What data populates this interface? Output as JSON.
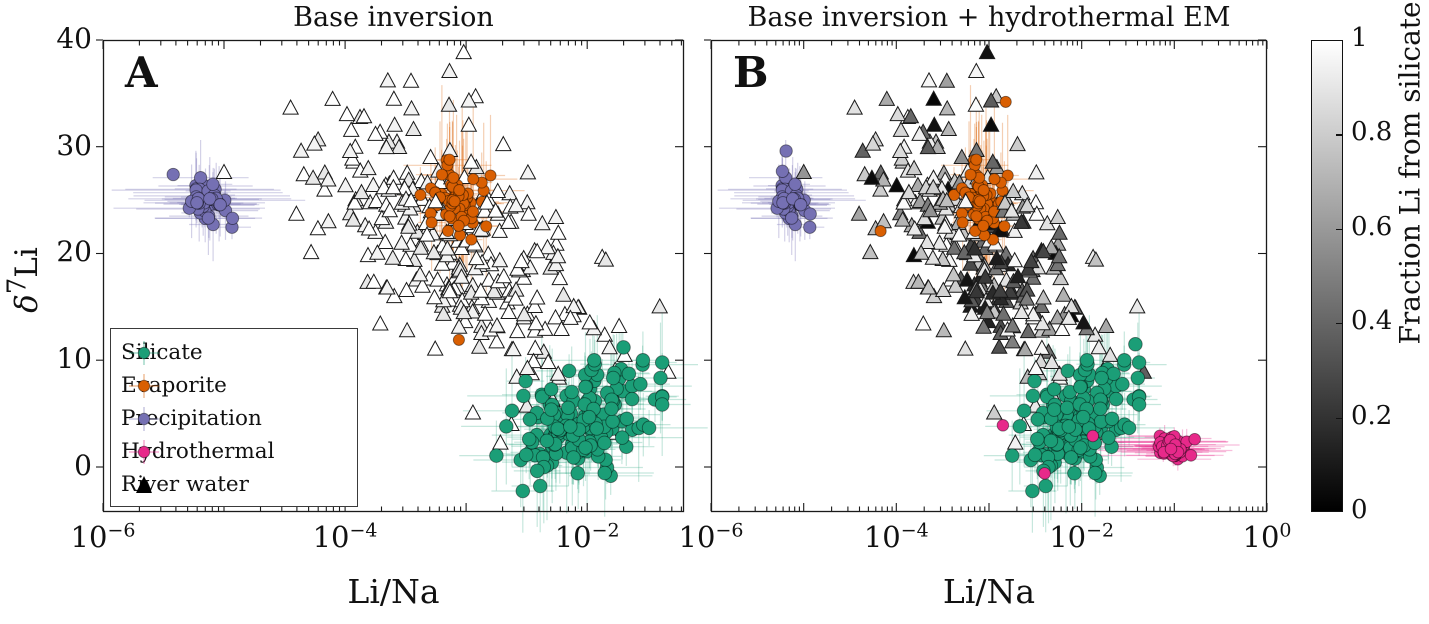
{
  "figure": {
    "background": "#ffffff"
  },
  "chart_data": [
    {
      "id": "A",
      "type": "scatter",
      "title": "Base inversion",
      "panel_label": "A",
      "xlabel": "Li/Na",
      "ylabel_parts": {
        "base": "δ",
        "sup": "7",
        "rest": "Li"
      },
      "x_scale": "log10",
      "xlim_log10": [
        -6,
        -1.2
      ],
      "ylim": [
        -4.22,
        40
      ],
      "grid": false,
      "xticks": [
        {
          "base": "10",
          "sup": "−6",
          "log10": -6
        },
        {
          "base": "10",
          "sup": "−4",
          "log10": -4
        },
        {
          "base": "10",
          "sup": "−2",
          "log10": -2
        }
      ],
      "yticks": [
        0,
        10,
        20,
        30,
        40
      ],
      "series_order": [
        "precipitation",
        "precipitation_extras_A",
        "river_water",
        "evaporite",
        "silicate",
        "evaporite_extras_A",
        "silicate_extras_A"
      ],
      "river_fill_mode": "open"
    },
    {
      "id": "B",
      "type": "scatter",
      "title": "Base inversion + hydrothermal EM",
      "panel_label": "B",
      "xlabel": "Li/Na",
      "ylabel_parts": {
        "base": "δ",
        "sup": "7",
        "rest": "Li"
      },
      "x_scale": "log10",
      "xlim_log10": [
        -6,
        0
      ],
      "ylim": [
        -4.22,
        40
      ],
      "grid": false,
      "xticks": [
        {
          "base": "10",
          "sup": "−6",
          "log10": -6
        },
        {
          "base": "10",
          "sup": "−4",
          "log10": -4
        },
        {
          "base": "10",
          "sup": "−2",
          "log10": -2
        },
        {
          "base": "10",
          "sup": "0",
          "log10": 0
        }
      ],
      "yticks": [
        0,
        10,
        20,
        30,
        40
      ],
      "series_order": [
        "precipitation",
        "precipitation_extras_B",
        "river_water",
        "evaporite",
        "silicate",
        "hydrothermal",
        "evaporite_extras_B",
        "silicate_extras_B",
        "hydrothermal_extras_B"
      ],
      "river_fill_mode": "fraction"
    }
  ],
  "series_defs": {
    "river_water": {
      "label": "River water",
      "marker": "triangle",
      "seed": 7,
      "n": 300,
      "logx_mean": -3.0,
      "logx_sd": 0.62,
      "logx_clip": [
        -5.0,
        -1.33
      ],
      "y_ref_x": -3.3,
      "y_base": 22,
      "y_slope": -6.5,
      "flat_below": -3.8,
      "y_sd": 5.0,
      "y_clip": [
        -1.5,
        39.3
      ],
      "extra_points": [
        [
          -3.02,
          38.8
        ],
        [
          -4.45,
          33.6
        ]
      ],
      "edge_color": "#1a1a1a",
      "open_fill_palette": [
        "#ffffff",
        "#f3f3f3",
        "#e8e8e8"
      ],
      "open_fill_weights": [
        0.55,
        0.3,
        0.15
      ]
    },
    "silicate": {
      "label": "Silicate",
      "marker": "circle",
      "seed": 11,
      "n": 165,
      "color": "#1b9e77",
      "r": 6.8,
      "center": [
        -2.05,
        4.0
      ],
      "sd": [
        0.3,
        2.3
      ],
      "tilt": 2.5,
      "logx_clip": [
        -2.75,
        -1.38
      ],
      "y_clip": [
        -2.6,
        10.0
      ],
      "err": {
        "opacity": 0.25,
        "h_min": 0.12,
        "h_rng": 0.38,
        "v_min": 1.5,
        "v_rng": 4.5,
        "left_bias": 0
      }
    },
    "evaporite": {
      "label": "Evaporite",
      "marker": "circle",
      "seed": 13,
      "n": 62,
      "color": "#d95f02",
      "r": 5.6,
      "center": [
        -3.08,
        25.0
      ],
      "sd": [
        0.12,
        1.7
      ],
      "tilt": 0,
      "logx_clip": [
        -3.45,
        -2.78
      ],
      "y_clip": [
        20.5,
        29.6
      ],
      "err": {
        "opacity": 0.3,
        "h_min": 0.08,
        "h_rng": 0.3,
        "v_min": 2.0,
        "v_rng": 7.0,
        "left_bias": 0
      }
    },
    "precipitation": {
      "label": "Precipitation",
      "marker": "circle",
      "seed": 17,
      "n": 46,
      "color": "#7570b3",
      "r": 6.2,
      "center": [
        -5.15,
        25.0
      ],
      "sd": [
        0.09,
        1.1
      ],
      "tilt": 0,
      "logx_clip": [
        -5.5,
        -4.8
      ],
      "y_clip": [
        21.5,
        28.5
      ],
      "err": {
        "opacity": 0.32,
        "h_min": 0.15,
        "h_rng": 0.55,
        "v_min": 0.8,
        "v_rng": 3.2,
        "left_bias": 0
      }
    },
    "hydrothermal": {
      "label": "Hydrothermal",
      "marker": "circle",
      "seed": 19,
      "n": 55,
      "color": "#e7298a",
      "r": 5.8,
      "center": [
        -1.03,
        1.7
      ],
      "sd": [
        0.075,
        0.45
      ],
      "tilt": 0,
      "logx_clip": [
        -1.25,
        -0.82
      ],
      "y_clip": [
        0.3,
        3.2
      ],
      "err": {
        "opacity": 0.3,
        "h_min": 0.08,
        "h_rng": 0.55,
        "v_min": 0.3,
        "v_rng": 1.1,
        "left_bias": 0.35
      }
    },
    "precipitation_extras_A": {
      "marker": "circle",
      "color": "#7570b3",
      "r": 6.2,
      "points": [
        [
          -5.42,
          27.4
        ],
        [
          -4.93,
          23.3
        ]
      ]
    },
    "evaporite_extras_A": {
      "marker": "circle",
      "color": "#d95f02",
      "r": 5.6,
      "points": [
        [
          -3.06,
          11.9
        ]
      ]
    },
    "silicate_extras_A": {
      "marker": "circle",
      "color": "#1b9e77",
      "r": 6.8,
      "points": [
        [
          -1.7,
          11.2
        ]
      ]
    },
    "precipitation_extras_B": {
      "marker": "circle",
      "color": "#7570b3",
      "r": 6.2,
      "points": [
        [
          -5.19,
          29.6
        ],
        [
          -5.23,
          27.7
        ],
        [
          -4.93,
          23.7
        ]
      ]
    },
    "evaporite_extras_B": {
      "marker": "circle",
      "color": "#d95f02",
      "r": 5.6,
      "points": [
        [
          -2.82,
          34.2
        ],
        [
          -4.17,
          22.1
        ]
      ]
    },
    "silicate_extras_B": {
      "marker": "circle",
      "color": "#1b9e77",
      "r": 6.8,
      "points": [
        [
          -1.42,
          11.5
        ]
      ]
    },
    "hydrothermal_extras_B": {
      "marker": "circle",
      "color": "#e7298a",
      "r": 5.8,
      "points": [
        [
          -2.85,
          3.9
        ],
        [
          -1.88,
          2.9
        ],
        [
          -2.4,
          -0.6
        ],
        [
          -0.78,
          2.6
        ]
      ]
    }
  },
  "fraction_model": {
    "seed": 23,
    "pocket_center": [
      -2.85,
      17.5
    ],
    "pocket_radii": [
      0.5,
      6.5
    ],
    "pocket_prob": 0.7,
    "pocket_f": [
      0.05,
      0.5
    ],
    "black_prob": 0.06,
    "black_f": [
      0.0,
      0.12
    ],
    "mid_prob": 0.2,
    "mid_f": [
      0.35,
      0.68
    ],
    "light_f": [
      0.6,
      1.0
    ]
  },
  "legend": {
    "items": [
      {
        "label": "Silicate",
        "marker": "circle",
        "color": "#1b9e77"
      },
      {
        "label": "Evaporite",
        "marker": "circle",
        "color": "#d95f02"
      },
      {
        "label": "Precipitation",
        "marker": "circle",
        "color": "#7570b3"
      },
      {
        "label": "Hydrothermal",
        "marker": "circle",
        "color": "#e7298a"
      },
      {
        "label": "River water",
        "marker": "triangle",
        "color": "#000000"
      }
    ]
  },
  "colorbar": {
    "title": "Fraction Li from silicate",
    "top_color": "#ffffff",
    "bottom_color": "#000000",
    "ticks": [
      {
        "label": "1",
        "value": 1
      },
      {
        "label": "0.8",
        "value": 0.8
      },
      {
        "label": "0.6",
        "value": 0.6
      },
      {
        "label": "0.4",
        "value": 0.4
      },
      {
        "label": "0.2",
        "value": 0.2
      },
      {
        "label": "0",
        "value": 0
      }
    ]
  }
}
